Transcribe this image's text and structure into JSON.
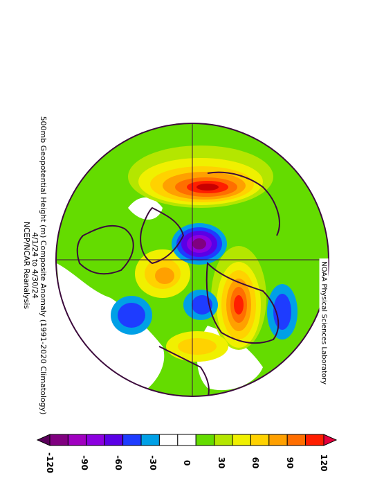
{
  "title": {
    "line1": "500mb Geopotential Height (m) Composite Anomaly (1991-2020 Climatology)",
    "line2": "4/1/24  to  4/30/24",
    "line3": "NCEP/NCAR Reanalysis"
  },
  "credit": "NOAA Physical Sciences Laboratory",
  "map": {
    "projection": "polar stereographic (Northern Hemisphere)",
    "anomaly_features": [
      {
        "sign": "positive",
        "region": "North Pacific / Aleutians",
        "max_class": "120"
      },
      {
        "sign": "negative",
        "region": "Arctic Ocean",
        "max_class": "-120"
      },
      {
        "sign": "positive",
        "region": "Europe",
        "max_class": "120"
      },
      {
        "sign": "negative",
        "region": "Central Siberia",
        "max_class": "-90"
      },
      {
        "sign": "negative",
        "region": "Southwest Europe / North Atlantic",
        "max_class": "-90"
      },
      {
        "sign": "negative",
        "region": "Subtropical Atlantic",
        "max_class": "-90"
      }
    ]
  },
  "colorbar": {
    "ticks": [
      "-120",
      "-90",
      "-60",
      "-30",
      "0",
      "30",
      "60",
      "90",
      "120"
    ],
    "colors": [
      "#800080",
      "#a000c0",
      "#8c00e0",
      "#5a00e6",
      "#1e3cff",
      "#00a0e6",
      "#ffffff",
      "#ffffff",
      "#64dc00",
      "#b4e600",
      "#f0f000",
      "#ffd200",
      "#ffa000",
      "#ff6e00",
      "#ff1e00"
    ],
    "low_end_color": "#5a005a",
    "high_end_color": "#e6003c"
  }
}
